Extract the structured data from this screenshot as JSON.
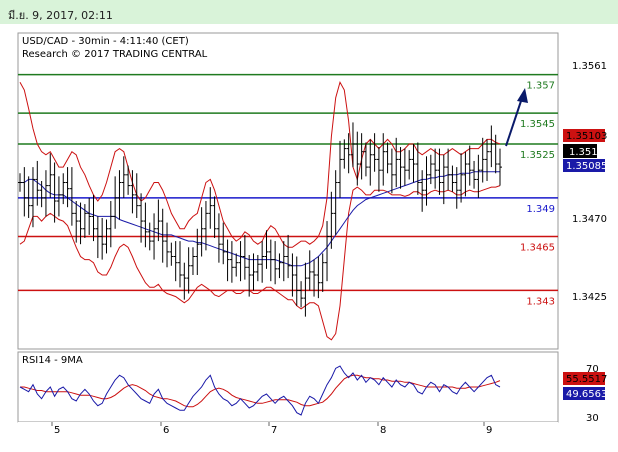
{
  "header": {
    "date": "มี.ย. 9, 2017, 02:11"
  },
  "colors": {
    "price": "#000000",
    "bb": "#cc1111",
    "ma": "#1a1aa8",
    "green": "#1f7a1f",
    "red": "#cc1111",
    "blue": "#1a1acc",
    "rsi": "#1a1aa8",
    "rsima": "#cc1111",
    "arrow": "#0a1a6a"
  },
  "chart_data": [
    {
      "type": "line",
      "title": "USD/CAD - 30min - 4:11:40 (CET)",
      "subtitle": "Research © 2017 TRADING CENTRAL",
      "ylim": [
        1.3392,
        1.3597
      ],
      "yticks": [
        "1.3561",
        "1.3470",
        "1.3425"
      ],
      "x_labels": [
        "5",
        "6",
        "7",
        "8",
        "9"
      ],
      "current_price": "1.351",
      "badges": {
        "upper": "1.35103",
        "price": "1.351",
        "lower": "1.35085"
      },
      "levels": [
        {
          "label": "1.357",
          "value": 1.357,
          "color": "green"
        },
        {
          "label": "1.3545",
          "value": 1.3545,
          "color": "green"
        },
        {
          "label": "1.3525",
          "value": 1.3525,
          "color": "green"
        },
        {
          "label": "1.349",
          "value": 1.349,
          "color": "blue"
        },
        {
          "label": "1.3465",
          "value": 1.3465,
          "color": "red"
        },
        {
          "label": "1.343",
          "value": 1.343,
          "color": "red"
        }
      ],
      "close": [
        1.35,
        1.349,
        1.3485,
        1.3502,
        1.3495,
        1.349,
        1.3498,
        1.3505,
        1.3488,
        1.3492,
        1.35,
        1.3496,
        1.348,
        1.3475,
        1.347,
        1.348,
        1.3478,
        1.347,
        1.3465,
        1.346,
        1.347,
        1.3478,
        1.349,
        1.35,
        1.3505,
        1.3498,
        1.3492,
        1.3485,
        1.3475,
        1.3468,
        1.3462,
        1.347,
        1.3475,
        1.3462,
        1.3455,
        1.3452,
        1.3448,
        1.344,
        1.3438,
        1.3446,
        1.3452,
        1.346,
        1.347,
        1.348,
        1.3485,
        1.347,
        1.346,
        1.3455,
        1.345,
        1.3445,
        1.3448,
        1.3452,
        1.3445,
        1.344,
        1.3442,
        1.3447,
        1.3452,
        1.3455,
        1.345,
        1.3444,
        1.3448,
        1.3452,
        1.3446,
        1.344,
        1.343,
        1.3425,
        1.3438,
        1.3442,
        1.344,
        1.3435,
        1.3448,
        1.3465,
        1.348,
        1.35,
        1.3515,
        1.3522,
        1.3518,
        1.3525,
        1.3512,
        1.352,
        1.351,
        1.3518,
        1.3515,
        1.3508,
        1.352,
        1.3512,
        1.3505,
        1.3515,
        1.351,
        1.3508,
        1.3515,
        1.3512,
        1.35,
        1.3495,
        1.3505,
        1.3512,
        1.3508,
        1.35,
        1.351,
        1.3505,
        1.35,
        1.3495,
        1.3505,
        1.3512,
        1.3508,
        1.3502,
        1.3508,
        1.3515,
        1.352,
        1.3525,
        1.3512,
        1.351
      ],
      "bb_upper": [
        1.3565,
        1.356,
        1.3548,
        1.3535,
        1.3525,
        1.352,
        1.3518,
        1.352,
        1.3515,
        1.351,
        1.351,
        1.3515,
        1.352,
        1.3518,
        1.351,
        1.3505,
        1.3498,
        1.3492,
        1.3488,
        1.3492,
        1.35,
        1.351,
        1.352,
        1.3522,
        1.352,
        1.351,
        1.35,
        1.3492,
        1.3488,
        1.349,
        1.3495,
        1.35,
        1.35,
        1.3495,
        1.3488,
        1.348,
        1.3475,
        1.347,
        1.347,
        1.3475,
        1.3478,
        1.348,
        1.349,
        1.35,
        1.3502,
        1.3495,
        1.3485,
        1.3475,
        1.347,
        1.3465,
        1.3462,
        1.3464,
        1.3468,
        1.3466,
        1.3462,
        1.346,
        1.3462,
        1.3468,
        1.3472,
        1.347,
        1.3465,
        1.346,
        1.3458,
        1.3458,
        1.346,
        1.3462,
        1.3462,
        1.346,
        1.3462,
        1.3465,
        1.3472,
        1.349,
        1.353,
        1.3555,
        1.3565,
        1.356,
        1.354,
        1.351,
        1.3502,
        1.3515,
        1.3525,
        1.3528,
        1.3525,
        1.3522,
        1.3525,
        1.3528,
        1.3525,
        1.352,
        1.352,
        1.3522,
        1.3525,
        1.3525,
        1.352,
        1.3518,
        1.352,
        1.3522,
        1.352,
        1.3518,
        1.3518,
        1.352,
        1.3522,
        1.352,
        1.3518,
        1.352,
        1.3522,
        1.3522,
        1.3522,
        1.3525,
        1.3528,
        1.3528,
        1.3526,
        1.3525
      ],
      "bb_lower": [
        1.346,
        1.3462,
        1.347,
        1.3478,
        1.3478,
        1.3475,
        1.3478,
        1.348,
        1.3478,
        1.3476,
        1.3475,
        1.3472,
        1.3465,
        1.3458,
        1.3452,
        1.345,
        1.345,
        1.3448,
        1.3442,
        1.344,
        1.344,
        1.3445,
        1.3452,
        1.3458,
        1.346,
        1.3458,
        1.3452,
        1.3445,
        1.344,
        1.3435,
        1.3432,
        1.3432,
        1.3434,
        1.343,
        1.3428,
        1.3427,
        1.3426,
        1.3424,
        1.3422,
        1.3424,
        1.3428,
        1.3432,
        1.3434,
        1.3432,
        1.343,
        1.3427,
        1.3426,
        1.3428,
        1.343,
        1.343,
        1.3428,
        1.3428,
        1.343,
        1.343,
        1.3428,
        1.3428,
        1.343,
        1.3432,
        1.3432,
        1.343,
        1.3428,
        1.3426,
        1.3424,
        1.3424,
        1.342,
        1.3418,
        1.342,
        1.3422,
        1.3422,
        1.342,
        1.341,
        1.34,
        1.3398,
        1.3402,
        1.342,
        1.345,
        1.348,
        1.3495,
        1.3497,
        1.3495,
        1.3492,
        1.3492,
        1.3495,
        1.3495,
        1.3495,
        1.3494,
        1.3492,
        1.3492,
        1.3492,
        1.3491,
        1.3492,
        1.3494,
        1.3494,
        1.3492,
        1.3492,
        1.3494,
        1.3495,
        1.3494,
        1.3494,
        1.3495,
        1.3494,
        1.3492,
        1.3492,
        1.3494,
        1.3495,
        1.3494,
        1.3494,
        1.3495,
        1.3496,
        1.3497,
        1.3497,
        1.3498
      ],
      "ma": [
        1.35,
        1.35,
        1.3502,
        1.3502,
        1.35,
        1.3498,
        1.3495,
        1.3493,
        1.3492,
        1.3492,
        1.3492,
        1.349,
        1.3488,
        1.3486,
        1.3484,
        1.3482,
        1.348,
        1.3479,
        1.3478,
        1.3478,
        1.3478,
        1.3478,
        1.3478,
        1.3476,
        1.3475,
        1.3474,
        1.3473,
        1.3472,
        1.3471,
        1.347,
        1.3469,
        1.3468,
        1.3467,
        1.3466,
        1.3466,
        1.3466,
        1.3465,
        1.3464,
        1.3463,
        1.3462,
        1.3462,
        1.3461,
        1.3461,
        1.346,
        1.3459,
        1.3458,
        1.3457,
        1.3456,
        1.3455,
        1.3454,
        1.3453,
        1.3452,
        1.3451,
        1.345,
        1.345,
        1.345,
        1.345,
        1.345,
        1.345,
        1.345,
        1.3449,
        1.3448,
        1.3447,
        1.3446,
        1.3446,
        1.3446,
        1.3447,
        1.3448,
        1.345,
        1.3452,
        1.3455,
        1.3458,
        1.3462,
        1.3466,
        1.347,
        1.3474,
        1.3478,
        1.3482,
        1.3485,
        1.3487,
        1.3489,
        1.349,
        1.3491,
        1.3492,
        1.3493,
        1.3494,
        1.3495,
        1.3496,
        1.3497,
        1.3498,
        1.3499,
        1.35,
        1.3501,
        1.3502,
        1.3502,
        1.3503,
        1.3503,
        1.3504,
        1.3504,
        1.3505,
        1.3505,
        1.3505,
        1.3506,
        1.3506,
        1.3506,
        1.3507,
        1.3507,
        1.3507,
        1.3507,
        1.3507,
        1.3507,
        1.3507
      ]
    },
    {
      "type": "line",
      "title": "RSI14 - 9MA",
      "ylim": [
        20,
        80
      ],
      "yticks": [
        "70",
        "30"
      ],
      "badges": {
        "ma": "55.5517",
        "rsi": "49.6563"
      },
      "rsi": [
        50,
        48,
        46,
        52,
        44,
        40,
        46,
        50,
        42,
        48,
        50,
        46,
        40,
        38,
        44,
        48,
        44,
        38,
        34,
        36,
        44,
        50,
        56,
        60,
        58,
        52,
        48,
        44,
        40,
        38,
        36,
        44,
        48,
        40,
        36,
        34,
        32,
        30,
        30,
        36,
        42,
        46,
        50,
        56,
        60,
        50,
        44,
        40,
        38,
        34,
        36,
        40,
        36,
        32,
        34,
        38,
        42,
        44,
        40,
        36,
        40,
        42,
        38,
        34,
        28,
        26,
        36,
        42,
        40,
        36,
        44,
        52,
        58,
        66,
        68,
        62,
        58,
        62,
        56,
        60,
        54,
        58,
        56,
        52,
        58,
        54,
        50,
        56,
        52,
        50,
        54,
        52,
        46,
        44,
        50,
        54,
        52,
        46,
        52,
        50,
        46,
        44,
        50,
        54,
        50,
        46,
        50,
        54,
        58,
        60,
        52,
        50
      ],
      "rsi_ma": [
        50,
        50,
        49,
        48,
        47,
        47,
        46,
        46,
        46,
        46,
        46,
        46,
        45,
        44,
        43,
        43,
        43,
        42,
        41,
        40,
        40,
        41,
        43,
        46,
        49,
        51,
        52,
        51,
        49,
        47,
        44,
        42,
        41,
        40,
        40,
        39,
        38,
        36,
        34,
        33,
        33,
        35,
        38,
        42,
        46,
        48,
        49,
        48,
        46,
        43,
        41,
        40,
        39,
        38,
        37,
        36,
        36,
        37,
        38,
        39,
        39,
        39,
        39,
        38,
        37,
        35,
        34,
        34,
        35,
        36,
        37,
        40,
        44,
        49,
        53,
        57,
        59,
        60,
        60,
        59,
        58,
        58,
        57,
        57,
        56,
        56,
        55,
        55,
        55,
        54,
        54,
        53,
        52,
        51,
        50,
        50,
        50,
        50,
        50,
        50,
        50,
        49,
        49,
        49,
        50,
        50,
        50,
        51,
        52,
        53,
        54,
        55.5
      ]
    }
  ]
}
